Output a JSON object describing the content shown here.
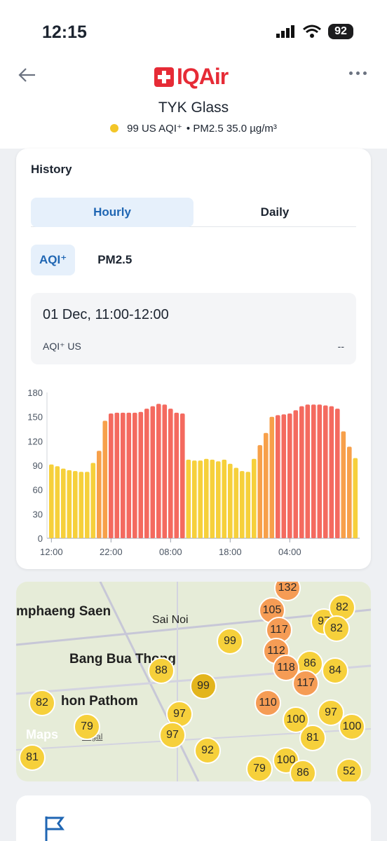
{
  "status": {
    "time": "12:15",
    "battery": "92"
  },
  "header": {
    "logo": "IQAir",
    "title": "TYK Glass",
    "aqi_text": "99 US AQI⁺",
    "pm_text": "• PM2.5  35.0 µg/m³"
  },
  "history": {
    "title": "History",
    "tabs": [
      "Hourly",
      "Daily"
    ],
    "metric_tabs": [
      "AQI⁺",
      "PM2.5"
    ],
    "selected_range": "01 Dec, 11:00-12:00",
    "metric_label": "AQI⁺ US",
    "metric_value": "--"
  },
  "chart_data": {
    "type": "bar",
    "x_ticks": [
      "12:00",
      "22:00",
      "08:00",
      "18:00",
      "04:00"
    ],
    "y_ticks": [
      0,
      30,
      60,
      90,
      120,
      150,
      180
    ],
    "ylim": [
      0,
      180
    ],
    "values": [
      91,
      89,
      86,
      84,
      83,
      82,
      82,
      93,
      108,
      145,
      154,
      155,
      155,
      155,
      155,
      156,
      160,
      163,
      166,
      165,
      160,
      155,
      154,
      97,
      96,
      96,
      98,
      97,
      95,
      97,
      92,
      87,
      83,
      82,
      98,
      115,
      130,
      150,
      152,
      153,
      154,
      158,
      163,
      165,
      165,
      165,
      164,
      163,
      160,
      132,
      113,
      99
    ],
    "colors": {
      "yellow": "#f6d03b",
      "orange": "#f7a04a",
      "red": "#f46a5f"
    }
  },
  "map": {
    "labels": [
      "mphaeng Saen",
      "Sai Noi",
      "Bang Bua Thong",
      "hon Pathom"
    ],
    "maps_label": "Maps",
    "legal": "Legal",
    "bubbles": [
      "132",
      "105",
      "117",
      "112",
      "99",
      "97",
      "82",
      "82",
      "84",
      "86",
      "118",
      "117",
      "88",
      "99",
      "97",
      "97",
      "110",
      "100",
      "100",
      "97",
      "92",
      "79",
      "100",
      "86",
      "52",
      "81",
      "82",
      "79",
      "81"
    ]
  }
}
